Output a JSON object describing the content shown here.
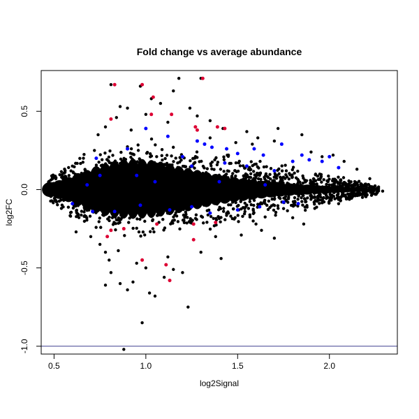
{
  "chart_data": {
    "type": "scatter",
    "title": "Fold change vs average abundance",
    "xlabel": "log2Signal",
    "ylabel": "log2FC",
    "xlim": [
      0.43,
      2.37
    ],
    "ylim": [
      -1.05,
      0.76
    ],
    "x_ticks": [
      0.5,
      1.0,
      1.5,
      2.0
    ],
    "x_tick_labels": [
      "0.5",
      "1.0",
      "1.5",
      "2.0"
    ],
    "y_ticks": [
      -1.0,
      -0.5,
      0.0,
      0.5
    ],
    "y_tick_labels": [
      "-1.0",
      "-0.5",
      "0.0",
      "0.5"
    ],
    "grid": false,
    "hline": {
      "y": -1.0,
      "color": "#3f3f8f"
    },
    "colors": {
      "background": "#000000",
      "blue": "#0000ff",
      "red": "#dd0033",
      "hline": "#3f3f8f"
    },
    "series": [
      {
        "color": "#000000",
        "points": [
          [
            0.81,
            0.67
          ],
          [
            0.97,
            0.66
          ],
          [
            1.18,
            0.71
          ],
          [
            1.3,
            0.71
          ],
          [
            1.03,
            0.58
          ],
          [
            0.86,
            0.53
          ],
          [
            0.9,
            0.52
          ],
          [
            1.15,
            0.63
          ],
          [
            1.08,
            0.55
          ],
          [
            1.24,
            0.52
          ],
          [
            1.0,
            0.48
          ],
          [
            1.35,
            0.44
          ],
          [
            1.28,
            0.47
          ],
          [
            1.42,
            0.39
          ],
          [
            1.55,
            0.37
          ],
          [
            1.61,
            0.33
          ],
          [
            1.72,
            0.39
          ],
          [
            1.85,
            0.35
          ],
          [
            1.7,
            0.31
          ],
          [
            1.58,
            0.29
          ],
          [
            1.9,
            0.24
          ],
          [
            2.02,
            0.22
          ],
          [
            2.08,
            0.18
          ],
          [
            1.96,
            0.21
          ],
          [
            2.15,
            0.13
          ],
          [
            2.22,
            0.07
          ],
          [
            2.29,
            -0.01
          ],
          [
            2.25,
            -0.03
          ],
          [
            2.18,
            -0.05
          ],
          [
            1.49,
            0.3
          ],
          [
            0.78,
            0.4
          ],
          [
            0.74,
            0.35
          ],
          [
            0.72,
            0.25
          ],
          [
            0.66,
            0.2
          ],
          [
            0.6,
            0.15
          ],
          [
            0.55,
            0.08
          ],
          [
            0.5,
            0.03
          ],
          [
            0.48,
            -0.01
          ],
          [
            0.51,
            -0.07
          ],
          [
            0.54,
            -0.12
          ],
          [
            0.59,
            -0.17
          ],
          [
            0.62,
            -0.27
          ],
          [
            0.7,
            -0.3
          ],
          [
            0.75,
            -0.35
          ],
          [
            0.78,
            -0.4
          ],
          [
            0.8,
            -0.45
          ],
          [
            0.81,
            -0.53
          ],
          [
            0.78,
            -0.61
          ],
          [
            0.86,
            -0.6
          ],
          [
            0.9,
            -0.64
          ],
          [
            0.93,
            -0.59
          ],
          [
            1.02,
            -0.66
          ],
          [
            1.05,
            -0.68
          ],
          [
            1.1,
            -0.56
          ],
          [
            1.15,
            -0.51
          ],
          [
            0.98,
            -0.85
          ],
          [
            0.88,
            -1.02
          ],
          [
            1.23,
            -0.75
          ],
          [
            1.2,
            -0.53
          ],
          [
            1.3,
            -0.4
          ],
          [
            1.41,
            -0.44
          ],
          [
            1.38,
            -0.3
          ],
          [
            1.52,
            -0.29
          ],
          [
            1.6,
            -0.22
          ],
          [
            1.7,
            -0.31
          ],
          [
            1.8,
            -0.18
          ],
          [
            1.92,
            -0.12
          ],
          [
            2.05,
            -0.09
          ],
          [
            1.86,
            -0.22
          ],
          [
            1.63,
            -0.26
          ],
          [
            1.12,
            -0.43
          ],
          [
            1.0,
            -0.5
          ],
          [
            0.95,
            -0.47
          ],
          [
            0.85,
            -0.39
          ],
          [
            1.25,
            -0.2
          ],
          [
            1.35,
            0.33
          ],
          [
            1.12,
            0.43
          ],
          [
            0.92,
            0.38
          ],
          [
            0.84,
            0.46
          ],
          [
            1.45,
            0.22
          ]
        ]
      },
      {
        "color": "#0000ff",
        "points": [
          [
            1.0,
            0.39
          ],
          [
            1.12,
            0.34
          ],
          [
            1.28,
            0.31
          ],
          [
            1.32,
            0.29
          ],
          [
            1.36,
            0.27
          ],
          [
            1.44,
            0.26
          ],
          [
            1.5,
            0.23
          ],
          [
            1.59,
            0.26
          ],
          [
            1.64,
            0.22
          ],
          [
            1.74,
            0.29
          ],
          [
            1.8,
            0.18
          ],
          [
            1.85,
            0.22
          ],
          [
            1.89,
            0.19
          ],
          [
            1.96,
            0.18
          ],
          [
            2.0,
            0.21
          ],
          [
            2.05,
            0.14
          ],
          [
            1.43,
            0.17
          ],
          [
            1.55,
            0.15
          ],
          [
            1.7,
            0.12
          ],
          [
            1.25,
            0.15
          ],
          [
            1.2,
            0.21
          ],
          [
            0.9,
            0.26
          ],
          [
            0.73,
            0.2
          ],
          [
            0.95,
            0.09
          ],
          [
            1.05,
            0.05
          ],
          [
            0.6,
            -0.09
          ],
          [
            0.71,
            -0.14
          ],
          [
            0.83,
            -0.14
          ],
          [
            0.97,
            -0.1
          ],
          [
            1.13,
            -0.13
          ],
          [
            1.25,
            -0.11
          ],
          [
            1.35,
            -0.15
          ],
          [
            1.5,
            -0.13
          ],
          [
            1.62,
            -0.11
          ],
          [
            1.75,
            -0.08
          ],
          [
            1.83,
            -0.09
          ],
          [
            1.65,
            0.03
          ],
          [
            1.4,
            0.05
          ],
          [
            0.75,
            0.09
          ],
          [
            0.68,
            0.03
          ]
        ]
      },
      {
        "color": "#dd0033",
        "points": [
          [
            0.83,
            0.67
          ],
          [
            0.98,
            0.67
          ],
          [
            1.31,
            0.71
          ],
          [
            1.04,
            0.59
          ],
          [
            1.03,
            0.48
          ],
          [
            1.14,
            0.48
          ],
          [
            0.81,
            0.45
          ],
          [
            1.27,
            0.4
          ],
          [
            1.39,
            0.4
          ],
          [
            1.43,
            0.39
          ],
          [
            1.28,
            0.38
          ],
          [
            1.06,
            -0.22
          ],
          [
            1.26,
            -0.22
          ],
          [
            1.38,
            -0.21
          ],
          [
            0.81,
            -0.26
          ],
          [
            0.88,
            -0.25
          ],
          [
            0.79,
            -0.3
          ],
          [
            1.26,
            -0.32
          ],
          [
            0.98,
            -0.45
          ],
          [
            1.11,
            -0.48
          ],
          [
            1.13,
            -0.58
          ]
        ]
      }
    ]
  }
}
